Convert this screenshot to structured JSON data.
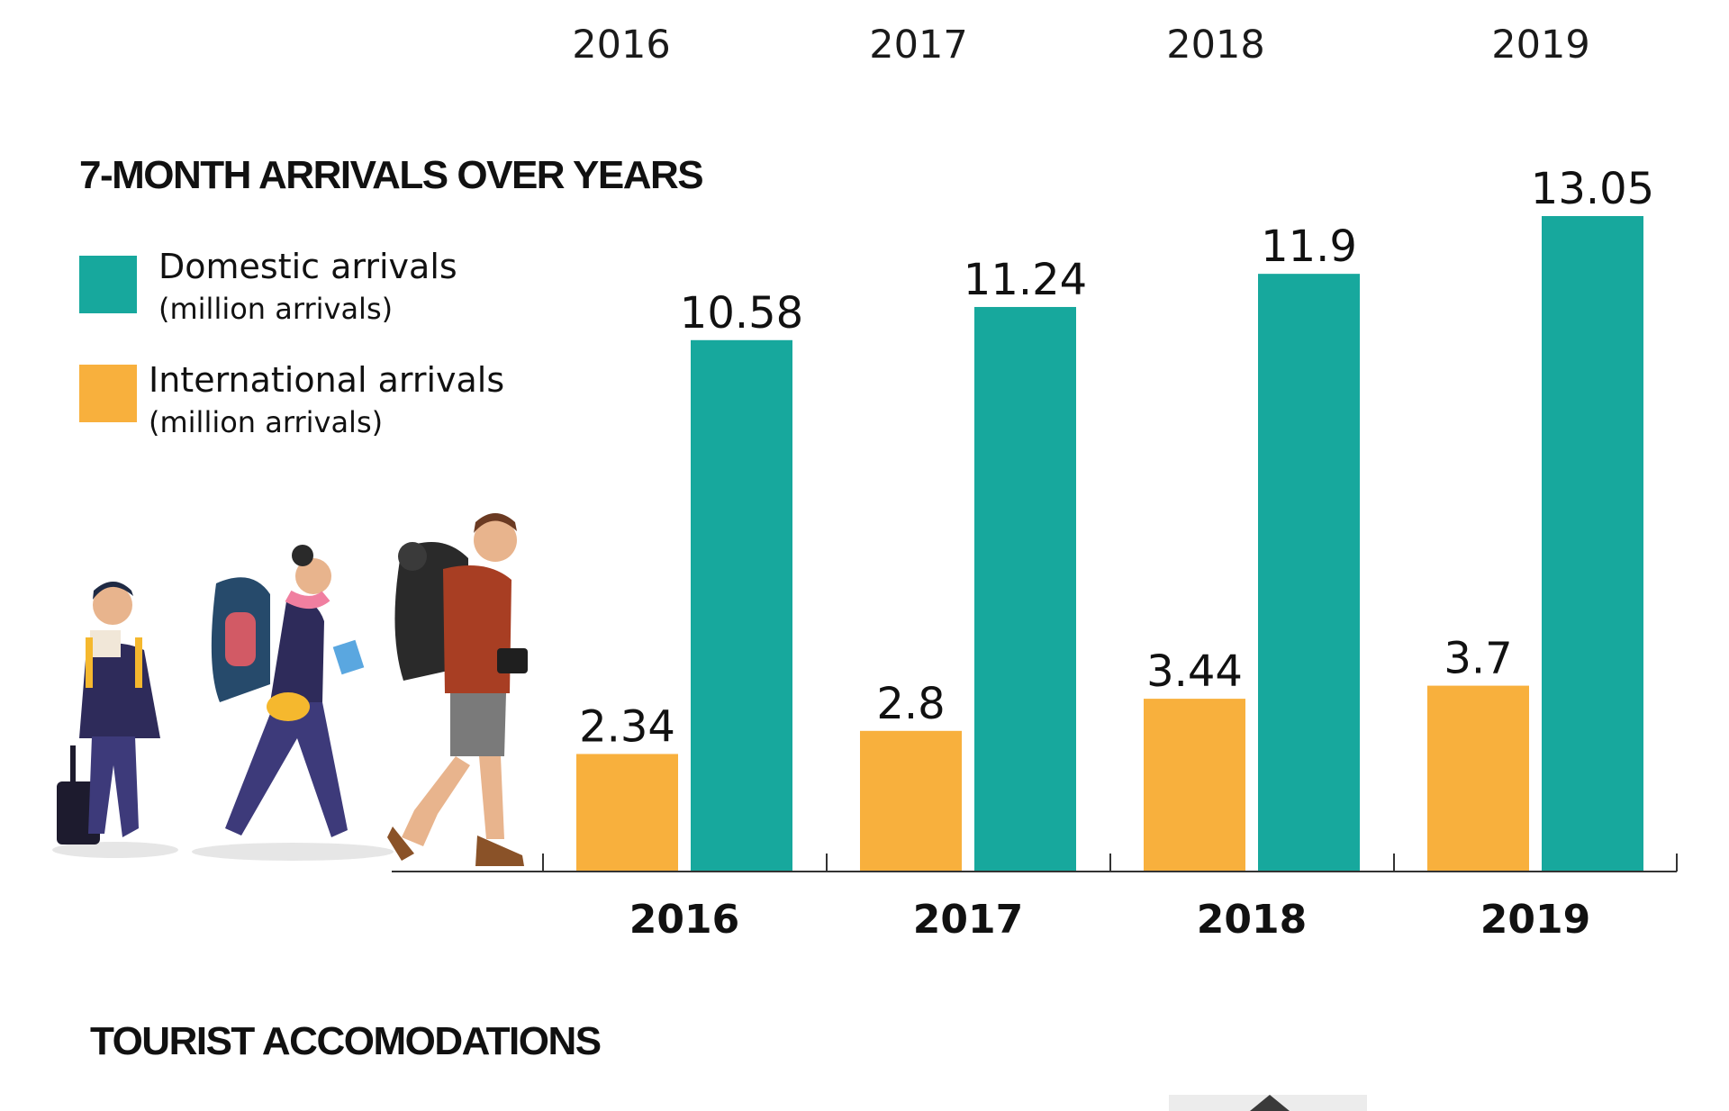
{
  "top_years": [
    "2016",
    "2017",
    "2018",
    "2019"
  ],
  "colors": {
    "domestic": "#17a89d",
    "international": "#f8b03d",
    "axis": "#333333"
  },
  "chart_data": {
    "type": "bar",
    "title": "7-MONTH ARRIVALS OVER YEARS",
    "categories": [
      "2016",
      "2017",
      "2018",
      "2019"
    ],
    "series": [
      {
        "name": "International arrivals",
        "unit": "(million arrivals)",
        "values": [
          2.34,
          2.8,
          3.44,
          3.7
        ],
        "labels": [
          "2.34",
          "2.8",
          "3.44",
          "3.7"
        ]
      },
      {
        "name": "Domestic arrivals",
        "unit": "(million arrivals)",
        "values": [
          10.58,
          11.24,
          11.9,
          13.05
        ],
        "labels": [
          "10.58",
          "11.24",
          "11.9",
          "13.05"
        ]
      }
    ],
    "ylim": [
      0,
      13.05
    ],
    "legend_position": "left",
    "grid": false
  },
  "illustration": {
    "icon": "travelers-illustration-icon"
  },
  "next_section": {
    "title": "TOURIST ACCOMODATIONS"
  }
}
